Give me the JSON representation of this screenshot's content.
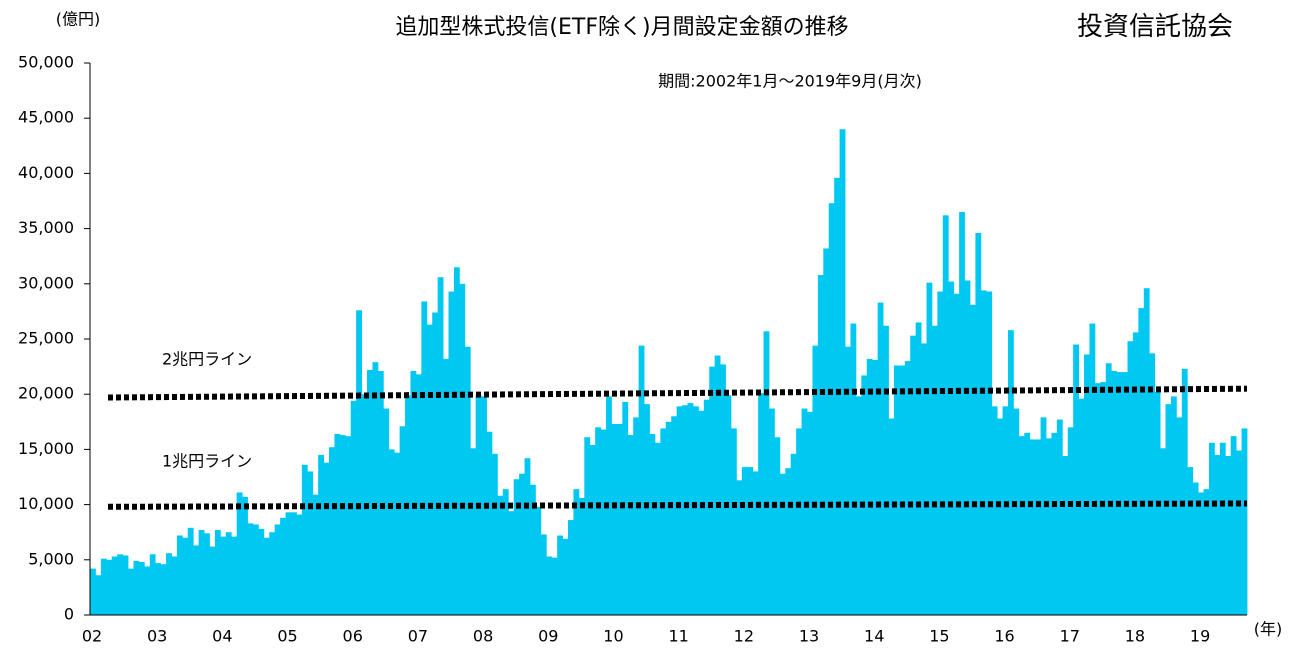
{
  "chart_data": {
    "type": "bar",
    "title": "追加型株式投信(ETF除く)月間設定金額の推移",
    "subtitle": "期間:2002年1月～2019年9月(月次)",
    "source": "投資信託協会",
    "y_label": "(億円)",
    "x_label": "(年)",
    "color": "#00c8f0",
    "ylim": [
      0,
      50000
    ],
    "yticks": [
      0,
      {
        "value": 5000,
        "label": "5,000"
      },
      {
        "value": 10000,
        "label": "10,000"
      },
      {
        "value": 15000,
        "label": "15,000"
      },
      {
        "value": 20000,
        "label": "20,000"
      },
      {
        "value": 25000,
        "label": "25,000"
      },
      {
        "value": 30000,
        "label": "30,000"
      },
      {
        "value": 35000,
        "label": "35,000"
      },
      {
        "value": 40000,
        "label": "40,000"
      },
      {
        "value": 45000,
        "label": "45,000"
      },
      {
        "value": 50000,
        "label": "50,000"
      }
    ],
    "reference_lines": [
      {
        "label": "2兆円ライン",
        "values": [
          19700,
          20500
        ]
      },
      {
        "label": "1兆円ライン",
        "values": [
          9800,
          10100
        ]
      }
    ],
    "categories": [
      "02",
      null,
      null,
      null,
      null,
      null,
      null,
      null,
      null,
      null,
      null,
      null,
      "03",
      null,
      null,
      null,
      null,
      null,
      null,
      null,
      null,
      null,
      null,
      null,
      "04",
      null,
      null,
      null,
      null,
      null,
      null,
      null,
      null,
      null,
      null,
      null,
      "05",
      null,
      null,
      null,
      null,
      null,
      null,
      null,
      null,
      null,
      null,
      null,
      "06",
      null,
      null,
      null,
      null,
      null,
      null,
      null,
      null,
      null,
      null,
      null,
      "07",
      null,
      null,
      null,
      null,
      null,
      null,
      null,
      null,
      null,
      null,
      null,
      "08",
      null,
      null,
      null,
      null,
      null,
      null,
      null,
      null,
      null,
      null,
      null,
      "09",
      null,
      null,
      null,
      null,
      null,
      null,
      null,
      null,
      null,
      null,
      null,
      "10",
      null,
      null,
      null,
      null,
      null,
      null,
      null,
      null,
      null,
      null,
      null,
      "11",
      null,
      null,
      null,
      null,
      null,
      null,
      null,
      null,
      null,
      null,
      null,
      "12",
      null,
      null,
      null,
      null,
      null,
      null,
      null,
      null,
      null,
      null,
      null,
      "13",
      null,
      null,
      null,
      null,
      null,
      null,
      null,
      null,
      null,
      null,
      null,
      "14",
      null,
      null,
      null,
      null,
      null,
      null,
      null,
      null,
      null,
      null,
      null,
      "15",
      null,
      null,
      null,
      null,
      null,
      null,
      null,
      null,
      null,
      null,
      null,
      "16",
      null,
      null,
      null,
      null,
      null,
      null,
      null,
      null,
      null,
      null,
      null,
      "17",
      null,
      null,
      null,
      null,
      null,
      null,
      null,
      null,
      null,
      null,
      null,
      "18",
      null,
      null,
      null,
      null,
      null,
      null,
      null,
      null,
      null,
      null,
      null,
      "19",
      null,
      null,
      null,
      null,
      null,
      null,
      null,
      null
    ],
    "values": [
      4200,
      3600,
      5100,
      5000,
      5300,
      5500,
      5400,
      4200,
      4900,
      4800,
      4400,
      5500,
      4700,
      4600,
      5600,
      5300,
      7200,
      7000,
      7900,
      6300,
      7700,
      7400,
      6200,
      7700,
      7100,
      7500,
      7100,
      11100,
      10700,
      8300,
      8200,
      7800,
      7000,
      7500,
      8200,
      8800,
      9300,
      9300,
      9100,
      13600,
      13000,
      10900,
      14500,
      13800,
      15200,
      16400,
      16300,
      16200,
      19400,
      27600,
      20000,
      22200,
      22900,
      22100,
      18700,
      15000,
      14700,
      17100,
      19900,
      22100,
      21800,
      28400,
      26300,
      27400,
      30600,
      23200,
      29300,
      31500,
      30000,
      24300,
      15100,
      19900,
      19800,
      16600,
      14600,
      10800,
      11400,
      9400,
      12300,
      12800,
      14200,
      11800,
      9800,
      7300,
      5300,
      5200,
      7200,
      6900,
      8600,
      11400,
      10600,
      16100,
      15400,
      17000,
      16800,
      19800,
      17300,
      17300,
      19300,
      16300,
      17900,
      24400,
      19100,
      16400,
      15600,
      16900,
      17500,
      18000,
      18900,
      19000,
      19200,
      18900,
      18500,
      19500,
      22500,
      23500,
      22700,
      19900,
      16900,
      12200,
      13400,
      13400,
      13000,
      20100,
      25700,
      18700,
      16100,
      12800,
      13300,
      14600,
      16900,
      18700,
      18400,
      24400,
      30800,
      33200,
      37300,
      39600,
      44000,
      24300,
      26400,
      19800,
      21700,
      23200,
      23100,
      28300,
      26200,
      17800,
      22600,
      22600,
      23000,
      25300,
      26500,
      24600,
      30100,
      26200,
      29300,
      36200,
      30200,
      29100,
      36500,
      30300,
      28100,
      34600,
      29400,
      29300,
      18900,
      17800,
      18900,
      25800,
      18700,
      16200,
      16500,
      15900,
      15900,
      17900,
      16000,
      16500,
      17700,
      14400,
      17000,
      24500,
      19600,
      23600,
      26400,
      21000,
      21100,
      22800,
      22100,
      22000,
      22000,
      24800,
      25600,
      27800,
      29600,
      23700,
      20200,
      15100,
      19100,
      19800,
      17900,
      22300,
      13400,
      12000,
      11100,
      11400,
      15600,
      14500,
      15600,
      14400,
      16200,
      14900,
      16900
    ]
  }
}
